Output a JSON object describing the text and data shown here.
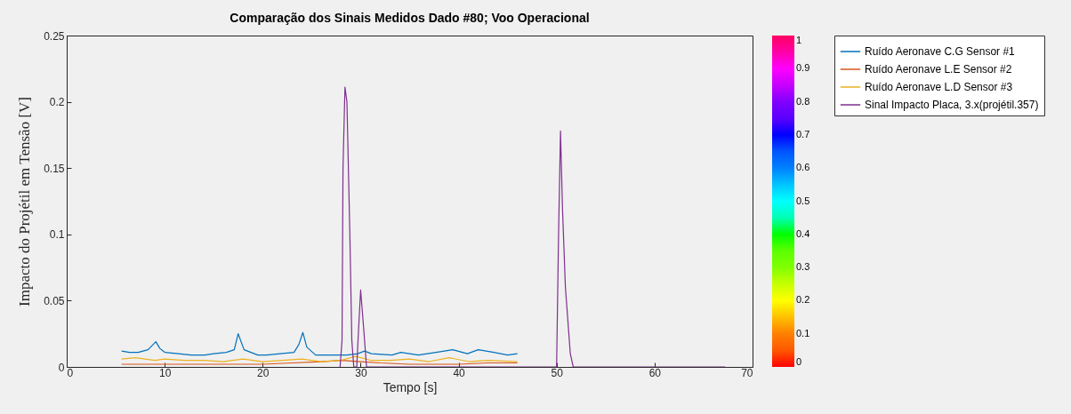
{
  "chart_data": {
    "type": "line",
    "title": "Comparação dos Sinais Medidos Dado #80; Voo Operacional",
    "xlabel": "Tempo [s]",
    "ylabel": "Impacto do Projétil em Tensão [V]",
    "xlim": [
      0,
      70
    ],
    "xticks": [
      0,
      10,
      20,
      30,
      40,
      50,
      60,
      70
    ],
    "ylim": [
      0,
      0.25
    ],
    "yticks": [
      0,
      0.05,
      0.1,
      0.15,
      0.2,
      0.25
    ],
    "clim": [
      0,
      1
    ],
    "cticks": [
      0,
      0.1,
      0.2,
      0.3,
      0.4,
      0.5,
      0.6,
      0.7,
      0.8,
      0.9,
      1
    ],
    "legend": "right",
    "grid": false,
    "line_style": "solid",
    "series": [
      {
        "name": "Ruído Aeronave C.G Sensor #1",
        "color": "#0072bd",
        "x": [
          5.6,
          6.4,
          7.3,
          8.3,
          9.1,
          9.5,
          10,
          11.4,
          12.7,
          14.1,
          15,
          16.3,
          17.1,
          17.5,
          18.1,
          19.5,
          20.4,
          21.8,
          23.2,
          23.7,
          24.1,
          24.5,
          25.4,
          26.8,
          28.6,
          29.7,
          30.4,
          31.1,
          33.2,
          34.1,
          35.9,
          37.7,
          39.4,
          40.9,
          42,
          43.6,
          45,
          46
        ],
        "values": [
          0.012,
          0.011,
          0.011,
          0.013,
          0.019,
          0.014,
          0.011,
          0.01,
          0.009,
          0.009,
          0.01,
          0.011,
          0.013,
          0.025,
          0.013,
          0.009,
          0.009,
          0.01,
          0.011,
          0.017,
          0.026,
          0.015,
          0.009,
          0.009,
          0.009,
          0.01,
          0.012,
          0.01,
          0.009,
          0.011,
          0.009,
          0.011,
          0.013,
          0.01,
          0.013,
          0.011,
          0.009,
          0.01
        ]
      },
      {
        "name": "Ruído Aeronave L.E Sensor #2",
        "color": "#d95319",
        "x": [
          5.6,
          10,
          15,
          20,
          23,
          26,
          28,
          30,
          32,
          35,
          40,
          43,
          46
        ],
        "values": [
          0.002,
          0.002,
          0.002,
          0.002,
          0.003,
          0.004,
          0.005,
          0.004,
          0.003,
          0.002,
          0.002,
          0.003,
          0.003
        ]
      },
      {
        "name": "Ruído Aeronave L.D Sensor #3",
        "color": "#edb120",
        "x": [
          5.6,
          7,
          9,
          10,
          12,
          14,
          16,
          18,
          20,
          22,
          24,
          26,
          28,
          29.5,
          31,
          33,
          35,
          37,
          39,
          41,
          43,
          46
        ],
        "values": [
          0.006,
          0.007,
          0.005,
          0.006,
          0.005,
          0.005,
          0.004,
          0.006,
          0.004,
          0.005,
          0.006,
          0.004,
          0.005,
          0.008,
          0.005,
          0.005,
          0.006,
          0.004,
          0.007,
          0.004,
          0.005,
          0.004
        ]
      },
      {
        "name": "Sinal Impacto Placa, 3.x(projétil.357)",
        "color": "#7e2f8e",
        "x": [
          27.9,
          28.1,
          28.2,
          28.4,
          28.6,
          28.9,
          29.1,
          29.3,
          29.6,
          29.8,
          30,
          30.3,
          30.6,
          50,
          50.2,
          50.4,
          50.6,
          50.9,
          51.4,
          51.7,
          67.2
        ],
        "values": [
          0,
          0.02,
          0.15,
          0.211,
          0.2,
          0.1,
          0.02,
          0,
          0,
          0.03,
          0.058,
          0.03,
          0,
          0,
          0.1,
          0.178,
          0.12,
          0.06,
          0.01,
          0,
          0
        ]
      }
    ]
  }
}
